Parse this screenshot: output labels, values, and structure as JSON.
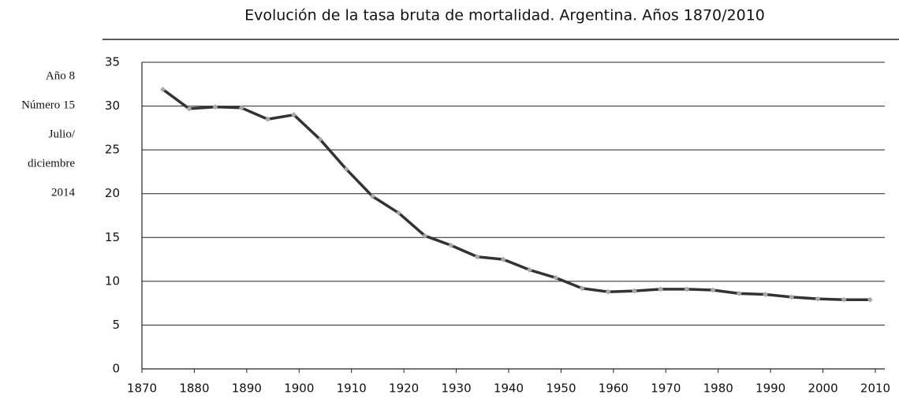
{
  "sidebar": [
    "Año 8",
    "Número 15",
    "Julio/",
    "diciembre",
    "2014"
  ],
  "chart_data": {
    "type": "line",
    "title": "Evolución de la tasa bruta de mortalidad. Argentina. Años 1870/2010",
    "x": [
      1874,
      1879,
      1884,
      1889,
      1894,
      1899,
      1904,
      1909,
      1914,
      1919,
      1924,
      1929,
      1934,
      1939,
      1944,
      1949,
      1954,
      1959,
      1964,
      1969,
      1974,
      1979,
      1984,
      1989,
      1994,
      1999,
      2004,
      2009
    ],
    "series": [
      {
        "color": "#333333",
        "marker_color": "#a8a8a8",
        "values": [
          31.9,
          29.7,
          29.9,
          29.8,
          28.5,
          29.0,
          26.2,
          22.8,
          19.7,
          17.8,
          15.2,
          14.1,
          12.8,
          12.5,
          11.3,
          10.4,
          9.2,
          8.8,
          8.9,
          9.1,
          9.1,
          9.0,
          8.6,
          8.5,
          8.2,
          8.0,
          7.9,
          7.9
        ]
      }
    ],
    "xlim": [
      1870,
      2010
    ],
    "xticks": [
      1870,
      1880,
      1890,
      1900,
      1910,
      1920,
      1930,
      1940,
      1950,
      1960,
      1970,
      1980,
      1990,
      2000,
      2010
    ],
    "ylim": [
      0,
      35
    ],
    "yticks": [
      0,
      5,
      10,
      15,
      20,
      25,
      30,
      35
    ],
    "grid": true
  }
}
